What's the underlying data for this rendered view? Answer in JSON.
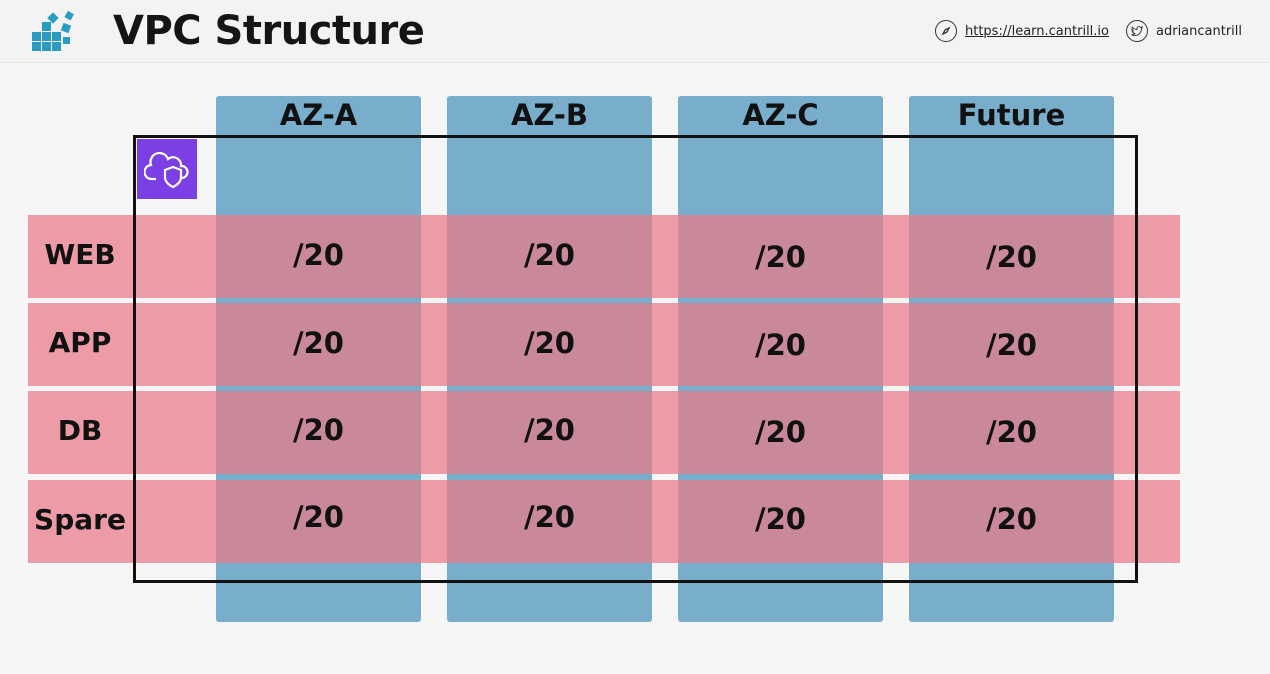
{
  "header": {
    "title": "VPC Structure",
    "url_text": "https://learn.cantrill.io",
    "twitter_handle": "adriancantrill",
    "logo_icon": "cantrill-logo-icon",
    "url_icon": "compass-icon",
    "twitter_icon": "twitter-bird-icon"
  },
  "diagram": {
    "columns": [
      "AZ-A",
      "AZ-B",
      "AZ-C",
      "Future"
    ],
    "rows": [
      {
        "label": "WEB",
        "cells": [
          "/20",
          "/20",
          "/20",
          "/20"
        ]
      },
      {
        "label": "APP",
        "cells": [
          "/20",
          "/20",
          "/20",
          "/20"
        ]
      },
      {
        "label": "DB",
        "cells": [
          "/20",
          "/20",
          "/20",
          "/20"
        ]
      },
      {
        "label": "Spare",
        "cells": [
          "/20",
          "/20",
          "/20",
          "/20"
        ]
      }
    ],
    "vpc_icon": "vpc-cloud-shield-icon",
    "colors": {
      "column_fill": "#6da6c8",
      "row_fill": "#ea7a88",
      "vpc_icon_bg": "#7b3fe4",
      "logo": "#2a9cc4"
    }
  }
}
